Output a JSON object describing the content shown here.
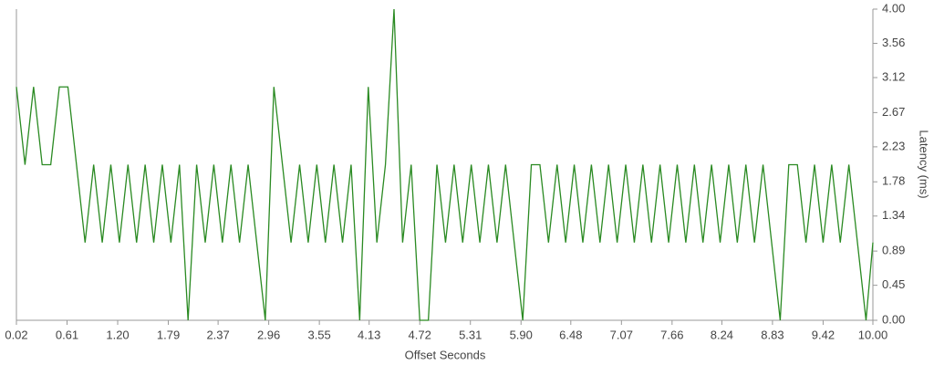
{
  "chart_data": {
    "type": "line",
    "x_label": "Offset Seconds",
    "y_label": "Latency (ms)",
    "x": [
      0.02,
      0.12,
      0.22,
      0.32,
      0.42,
      0.52,
      0.62,
      0.72,
      0.82,
      0.92,
      1.02,
      1.12,
      1.22,
      1.32,
      1.42,
      1.52,
      1.62,
      1.72,
      1.82,
      1.92,
      2.02,
      2.12,
      2.22,
      2.32,
      2.42,
      2.52,
      2.62,
      2.72,
      2.82,
      2.92,
      3.02,
      3.12,
      3.22,
      3.32,
      3.42,
      3.52,
      3.62,
      3.72,
      3.82,
      3.92,
      4.02,
      4.12,
      4.22,
      4.32,
      4.42,
      4.52,
      4.62,
      4.72,
      4.82,
      4.92,
      5.02,
      5.12,
      5.22,
      5.32,
      5.42,
      5.52,
      5.62,
      5.72,
      5.82,
      5.92,
      6.02,
      6.12,
      6.22,
      6.32,
      6.42,
      6.52,
      6.62,
      6.72,
      6.82,
      6.92,
      7.02,
      7.12,
      7.22,
      7.32,
      7.42,
      7.52,
      7.62,
      7.72,
      7.82,
      7.92,
      8.02,
      8.12,
      8.22,
      8.32,
      8.42,
      8.52,
      8.62,
      8.72,
      8.82,
      8.92,
      9.02,
      9.12,
      9.22,
      9.32,
      9.42,
      9.52,
      9.62,
      9.72,
      9.82,
      9.92,
      10.0
    ],
    "series": [
      {
        "color": "#2a8a22",
        "values": [
          3,
          2,
          3,
          2,
          2,
          3,
          3,
          2,
          1,
          2,
          1,
          2,
          1,
          2,
          1,
          2,
          1,
          2,
          1,
          2,
          0,
          2,
          1,
          2,
          1,
          2,
          1,
          2,
          1,
          0,
          3,
          2,
          1,
          2,
          1,
          2,
          1,
          2,
          1,
          2,
          0,
          3,
          1,
          2,
          4,
          1,
          2,
          0,
          0,
          2,
          1,
          2,
          1,
          2,
          1,
          2,
          1,
          2,
          1,
          0,
          2,
          2,
          1,
          2,
          1,
          2,
          1,
          2,
          1,
          2,
          1,
          2,
          1,
          2,
          1,
          2,
          1,
          2,
          1,
          2,
          1,
          2,
          1,
          2,
          1,
          2,
          1,
          2,
          1,
          0,
          2,
          2,
          1,
          2,
          1,
          2,
          1,
          2,
          1,
          0,
          1
        ]
      }
    ],
    "xlim": [
      0.02,
      10.0
    ],
    "xticks": [
      0.02,
      0.61,
      {
        "value": 1.2,
        "label": "1.20"
      },
      1.79,
      2.37,
      2.96,
      3.55,
      4.13,
      4.72,
      5.31,
      {
        "value": 5.9,
        "label": "5.90"
      },
      6.48,
      7.07,
      7.66,
      8.24,
      8.83,
      9.42,
      {
        "value": 10.0,
        "label": "10.00"
      }
    ],
    "ylim": [
      0,
      4
    ],
    "yticks": [
      {
        "value": 0,
        "label": "0.00"
      },
      0.45,
      0.89,
      1.34,
      1.78,
      2.23,
      2.67,
      3.12,
      3.56,
      {
        "value": 4,
        "label": "4.00"
      }
    ],
    "y_axis_side": "right",
    "grid": false
  }
}
